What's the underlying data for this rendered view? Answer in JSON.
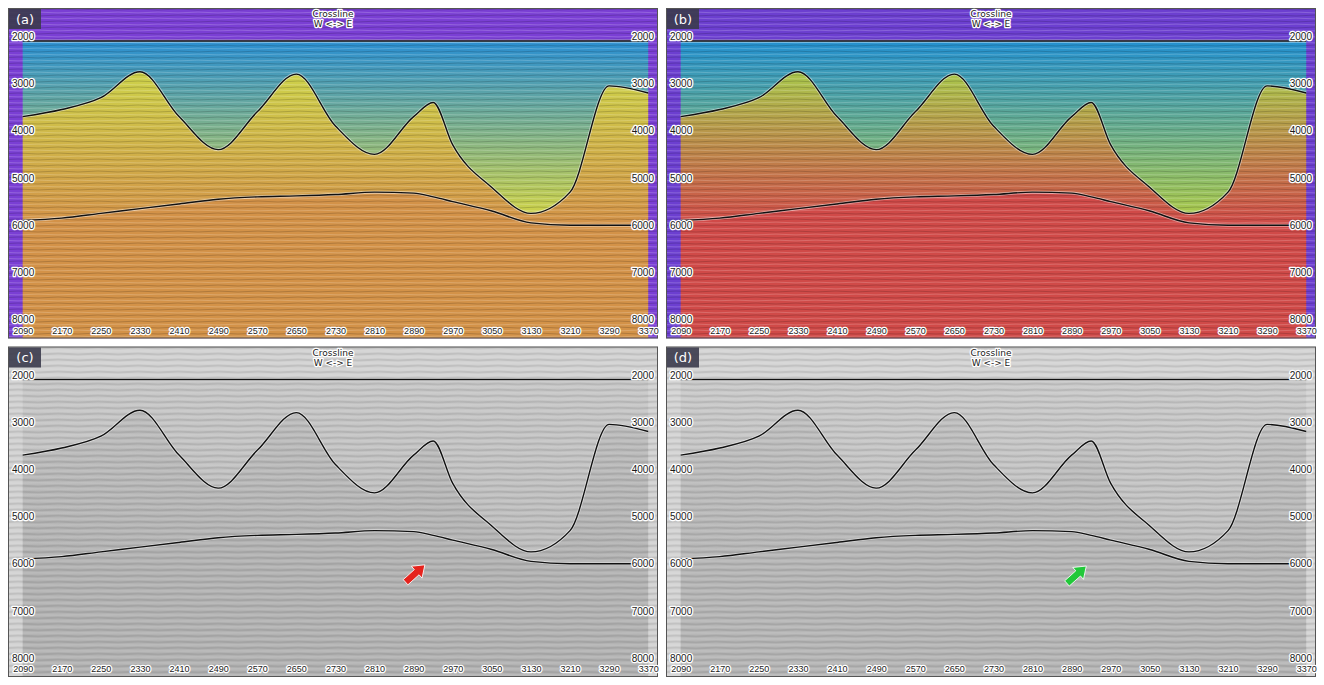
{
  "chart_data": [
    {
      "type": "seismic_section",
      "label": "(a)",
      "title": "Crossline",
      "subtitle": "W <-> E",
      "xlim": [
        2060,
        3390
      ],
      "ylim": [
        1400,
        8400
      ],
      "xticks": [
        2090,
        2170,
        2250,
        2330,
        2410,
        2490,
        2570,
        2650,
        2730,
        2810,
        2890,
        2970,
        3050,
        3130,
        3210,
        3290,
        3370
      ],
      "yticks": [
        2000,
        3000,
        4000,
        5000,
        6000,
        7000,
        8000
      ],
      "color": "#7a3fd4",
      "x": [
        2090,
        2170,
        2250,
        2330,
        2410,
        2490,
        2570,
        2650,
        2730,
        2810,
        2890,
        2930,
        2970,
        3050,
        3130,
        3210,
        3290,
        3370
      ],
      "series": [
        {
          "color": "#2a8fd2",
          "values": [
            2100,
            2100,
            2100,
            2100,
            2100,
            2100,
            2100,
            2100,
            2100,
            2100,
            2100,
            2100,
            2100,
            2100,
            2100,
            2100,
            2100,
            2100
          ]
        },
        {
          "color": "#cdd24a",
          "values": [
            3700,
            3550,
            3300,
            2750,
            3700,
            4400,
            3600,
            2800,
            3900,
            4500,
            3700,
            3400,
            4300,
            5200,
            5750,
            5300,
            3050,
            3200
          ]
        },
        {
          "color": "#d39248",
          "values": [
            5900,
            5850,
            5750,
            5650,
            5550,
            5450,
            5400,
            5380,
            5350,
            5300,
            5320,
            5400,
            5500,
            5700,
            5950,
            6000,
            6000,
            6000
          ]
        }
      ]
    },
    {
      "type": "seismic_section",
      "label": "(b)",
      "title": "Crossline",
      "subtitle": "W <-> E",
      "xlim": [
        2060,
        3390
      ],
      "ylim": [
        1400,
        8400
      ],
      "xticks": [
        2090,
        2170,
        2250,
        2330,
        2410,
        2490,
        2570,
        2650,
        2730,
        2810,
        2890,
        2970,
        3050,
        3130,
        3210,
        3290,
        3370
      ],
      "yticks": [
        2000,
        3000,
        4000,
        5000,
        6000,
        7000,
        8000
      ],
      "color": "#6c3fd0",
      "x": [
        2090,
        2170,
        2250,
        2330,
        2410,
        2490,
        2570,
        2650,
        2730,
        2810,
        2890,
        2930,
        2970,
        3050,
        3130,
        3210,
        3290,
        3370
      ],
      "series": [
        {
          "color": "#2390d0",
          "values": [
            2100,
            2100,
            2100,
            2100,
            2100,
            2100,
            2100,
            2100,
            2100,
            2100,
            2100,
            2100,
            2100,
            2100,
            2100,
            2100,
            2100,
            2100
          ]
        },
        {
          "color": "#a9c84c",
          "values": [
            3700,
            3550,
            3300,
            2750,
            3700,
            4400,
            3600,
            2800,
            3900,
            4500,
            3700,
            3400,
            4300,
            5200,
            5750,
            5300,
            3050,
            3200
          ]
        },
        {
          "color": "#d04a48",
          "values": [
            5900,
            5850,
            5750,
            5650,
            5550,
            5450,
            5400,
            5380,
            5350,
            5300,
            5320,
            5400,
            5500,
            5700,
            5950,
            6000,
            6000,
            6000
          ]
        }
      ]
    },
    {
      "type": "seismic_section",
      "label": "(c)",
      "title": "Crossline",
      "subtitle": "W <-> E",
      "xlim": [
        2060,
        3390
      ],
      "ylim": [
        1400,
        8400
      ],
      "xticks": [
        2090,
        2170,
        2250,
        2330,
        2410,
        2490,
        2570,
        2650,
        2730,
        2810,
        2890,
        2970,
        3050,
        3130,
        3210,
        3290,
        3370
      ],
      "yticks": [
        2000,
        3000,
        4000,
        5000,
        6000,
        7000,
        8000
      ],
      "color": "#d2d2d2",
      "x": [
        2090,
        2170,
        2250,
        2330,
        2410,
        2490,
        2570,
        2650,
        2730,
        2810,
        2890,
        2930,
        2970,
        3050,
        3130,
        3210,
        3290,
        3370
      ],
      "series": [
        {
          "color": "#c8c8c8",
          "values": [
            2100,
            2100,
            2100,
            2100,
            2100,
            2100,
            2100,
            2100,
            2100,
            2100,
            2100,
            2100,
            2100,
            2100,
            2100,
            2100,
            2100,
            2100
          ]
        },
        {
          "color": "#bdbdbd",
          "values": [
            3700,
            3550,
            3300,
            2750,
            3700,
            4400,
            3600,
            2800,
            3900,
            4500,
            3700,
            3400,
            4300,
            5200,
            5750,
            5300,
            3050,
            3200
          ]
        },
        {
          "color": "#b3b3b3",
          "values": [
            5900,
            5850,
            5750,
            5650,
            5550,
            5450,
            5400,
            5380,
            5350,
            5300,
            5320,
            5400,
            5500,
            5700,
            5950,
            6000,
            6000,
            6000
          ]
        }
      ],
      "arrow": {
        "x": 2913,
        "y": 6024,
        "color": "#e5231d"
      }
    },
    {
      "type": "seismic_section",
      "label": "(d)",
      "title": "Crossline",
      "subtitle": "W <-> E",
      "xlim": [
        2060,
        3390
      ],
      "ylim": [
        1400,
        8400
      ],
      "xticks": [
        2090,
        2170,
        2250,
        2330,
        2410,
        2490,
        2570,
        2650,
        2730,
        2810,
        2890,
        2970,
        3050,
        3130,
        3210,
        3290,
        3370
      ],
      "yticks": [
        2000,
        3000,
        4000,
        5000,
        6000,
        7000,
        8000
      ],
      "color": "#d4d4d4",
      "x": [
        2090,
        2170,
        2250,
        2330,
        2410,
        2490,
        2570,
        2650,
        2730,
        2810,
        2890,
        2930,
        2970,
        3050,
        3130,
        3210,
        3290,
        3370
      ],
      "series": [
        {
          "color": "#cacaca",
          "values": [
            2100,
            2100,
            2100,
            2100,
            2100,
            2100,
            2100,
            2100,
            2100,
            2100,
            2100,
            2100,
            2100,
            2100,
            2100,
            2100,
            2100,
            2100
          ]
        },
        {
          "color": "#c0c0c0",
          "values": [
            3700,
            3550,
            3300,
            2750,
            3700,
            4400,
            3600,
            2800,
            3900,
            4500,
            3700,
            3400,
            4300,
            5200,
            5750,
            5300,
            3050,
            3200
          ]
        },
        {
          "color": "#b6b6b6",
          "values": [
            5900,
            5850,
            5750,
            5650,
            5550,
            5450,
            5400,
            5380,
            5350,
            5300,
            5320,
            5400,
            5500,
            5700,
            5950,
            6000,
            6000,
            6000
          ]
        }
      ],
      "arrow": {
        "x": 2920,
        "y": 6050,
        "color": "#22c83a"
      }
    }
  ]
}
